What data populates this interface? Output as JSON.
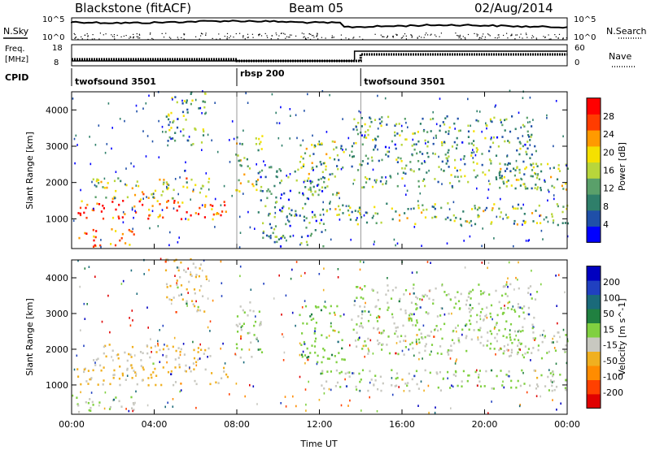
{
  "header": {
    "station": "Blackstone (fitACF)",
    "beam": "Beam 05",
    "date": "02/Aug/2014"
  },
  "summary_panels": {
    "nsky_label": "N.Sky",
    "nsearch_label": "N.Search",
    "noise_ticks_left": [
      "10^5",
      "10^0"
    ],
    "noise_ticks_right": [
      "10^5",
      "10^0"
    ],
    "freq_label_1": "Freq.",
    "freq_label_2": "[MHz]",
    "freq_ticks": [
      "18",
      "8"
    ],
    "nave_label": "Nave",
    "nave_ticks": [
      "60",
      "0"
    ],
    "cpid_label": "CPID",
    "cpid_segments": [
      {
        "name": "twofsound 3501",
        "start_hour": 0,
        "end_hour": 8
      },
      {
        "name": "rbsp 200",
        "start_hour": 8,
        "end_hour": 14
      },
      {
        "name": "twofsound 3501",
        "start_hour": 14,
        "end_hour": 24
      }
    ]
  },
  "chart_data": [
    {
      "type": "heatmap",
      "panel": "power",
      "xlabel": "Time UT",
      "ylabel": "Slant Range [km]",
      "x_ticks": [
        "00:00",
        "04:00",
        "08:00",
        "12:00",
        "16:00",
        "20:00",
        "00:00"
      ],
      "x_range_hours": [
        0,
        24
      ],
      "y_ticks": [
        1000,
        2000,
        3000,
        4000
      ],
      "ylim": [
        180,
        4500
      ],
      "colorbar": {
        "label": "Power [dB]",
        "ticks": [
          "28",
          "24",
          "20",
          "16",
          "12",
          "8",
          "4"
        ],
        "range": [
          0,
          30
        ],
        "colors": [
          "#0000ff",
          "#1f4fa8",
          "#2f7f6a",
          "#5aa06a",
          "#b8d63b",
          "#f5e000",
          "#ff9a00",
          "#ff3c00",
          "#ff0000"
        ]
      },
      "echo_regions_hours_km": [
        {
          "t0": 0.2,
          "t1": 7.6,
          "r0": 950,
          "r1": 1500,
          "level": 0.85
        },
        {
          "t0": 1.0,
          "t1": 6.8,
          "r0": 1500,
          "r1": 2100,
          "level": 0.55
        },
        {
          "t0": 4.5,
          "t1": 6.5,
          "r0": 3000,
          "r1": 4500,
          "level": 0.4
        },
        {
          "t0": 7.9,
          "t1": 9.2,
          "r0": 1700,
          "r1": 3300,
          "level": 0.5
        },
        {
          "t0": 9.0,
          "t1": 12.2,
          "r0": 200,
          "r1": 2400,
          "level": 0.3
        },
        {
          "t0": 11.0,
          "t1": 13.2,
          "r0": 1600,
          "r1": 3200,
          "level": 0.45
        },
        {
          "t0": 12.0,
          "t1": 24.0,
          "r0": 800,
          "r1": 1400,
          "level": 0.45
        },
        {
          "t0": 13.5,
          "t1": 22.5,
          "r0": 1800,
          "r1": 3800,
          "level": 0.35
        },
        {
          "t0": 0.2,
          "t1": 3.0,
          "r0": 200,
          "r1": 700,
          "level": 0.8
        },
        {
          "t0": 20.5,
          "t1": 24.0,
          "r0": 1700,
          "r1": 2500,
          "level": 0.45
        }
      ]
    },
    {
      "type": "heatmap",
      "panel": "velocity",
      "xlabel": "Time UT",
      "ylabel": "Slant Range [km]",
      "x_ticks": [
        "00:00",
        "04:00",
        "08:00",
        "12:00",
        "16:00",
        "20:00",
        "00:00"
      ],
      "x_range_hours": [
        0,
        24
      ],
      "y_ticks": [
        1000,
        2000,
        3000,
        4000
      ],
      "ylim": [
        180,
        4500
      ],
      "colorbar": {
        "label": "Velocity [m s^-1]",
        "ticks": [
          "200",
          "100",
          "50",
          "15",
          "-15",
          "-50",
          "-100",
          "-200"
        ],
        "range": [
          -250,
          250
        ],
        "colors": [
          "#e00000",
          "#ff4000",
          "#ff8c00",
          "#f0b020",
          "#c8c8c0",
          "#80d040",
          "#208040",
          "#1a6a7a",
          "#2040c0",
          "#0000c0"
        ]
      },
      "echo_regions_hours_km": [
        {
          "t0": 0.2,
          "t1": 7.6,
          "r0": 950,
          "r1": 1500,
          "vel": -60
        },
        {
          "t0": 1.0,
          "t1": 6.8,
          "r0": 1500,
          "r1": 2100,
          "vel": -40
        },
        {
          "t0": 4.5,
          "t1": 6.5,
          "r0": 3000,
          "r1": 4500,
          "vel": -50
        },
        {
          "t0": 7.9,
          "t1": 9.2,
          "r0": 1700,
          "r1": 3300,
          "vel": -5
        },
        {
          "t0": 11.0,
          "t1": 13.2,
          "r0": 1600,
          "r1": 3200,
          "vel": 30
        },
        {
          "t0": 12.0,
          "t1": 24.0,
          "r0": 800,
          "r1": 1400,
          "vel": 0
        },
        {
          "t0": 13.5,
          "t1": 22.5,
          "r0": 1800,
          "r1": 3800,
          "vel": 0
        },
        {
          "t0": 0.2,
          "t1": 3.0,
          "r0": 200,
          "r1": 700,
          "vel": -10
        },
        {
          "t0": 20.5,
          "t1": 24.0,
          "r0": 1700,
          "r1": 2500,
          "vel": -5
        }
      ]
    }
  ]
}
